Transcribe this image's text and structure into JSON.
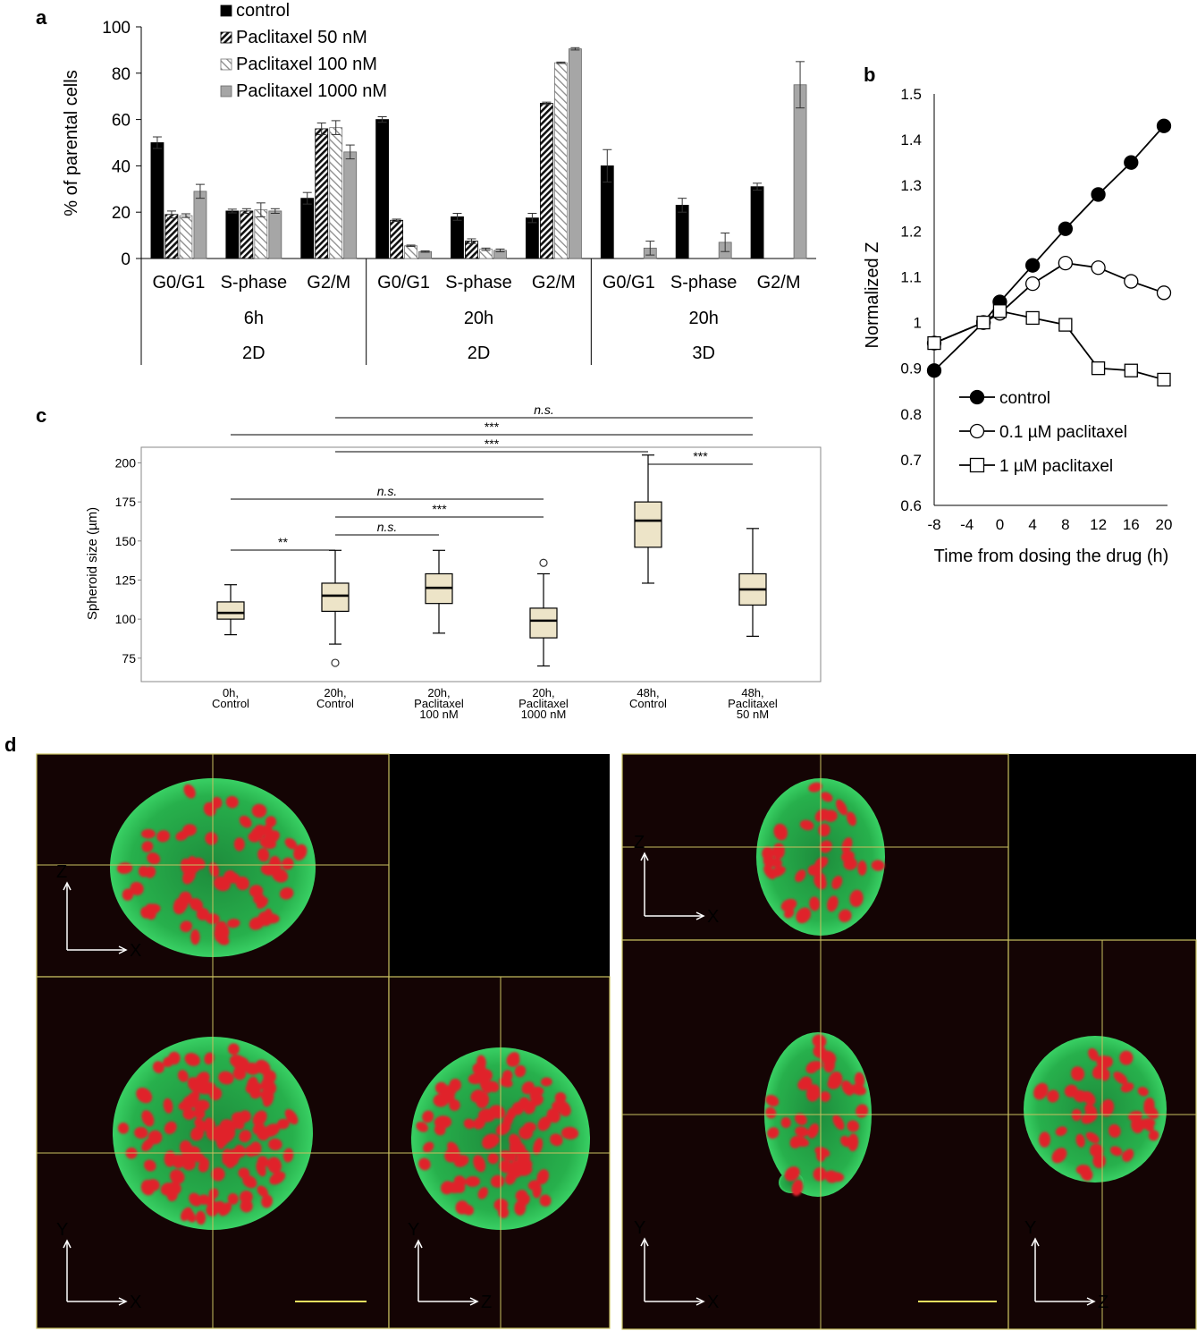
{
  "panel_labels": {
    "a": "a",
    "b": "b",
    "c": "c",
    "d": "d"
  },
  "chart_data": [
    {
      "id": "a",
      "type": "bar",
      "ylabel": "% of parental cells",
      "ylim": [
        0,
        100
      ],
      "yticks": [
        0,
        20,
        40,
        60,
        80,
        100
      ],
      "legend": [
        "control",
        "Paclitaxel 50 nM",
        "Paclitaxel 100 nM",
        "Paclitaxel 1000 nM"
      ],
      "groups": [
        {
          "time": "6h",
          "culture": "2D",
          "categories": [
            {
              "label": "G0/G1",
              "values": [
                50,
                19,
                18.5,
                29
              ],
              "errors": [
                2.5,
                1.5,
                0.8,
                3
              ]
            },
            {
              "label": "S-phase",
              "values": [
                20.5,
                20.5,
                21,
                20.5
              ],
              "errors": [
                0.8,
                1,
                3,
                1
              ]
            },
            {
              "label": "G2/M",
              "values": [
                26,
                56,
                56.5,
                46
              ],
              "errors": [
                2.5,
                2.5,
                3,
                3
              ]
            }
          ]
        },
        {
          "time": "20h",
          "culture": "2D",
          "categories": [
            {
              "label": "G0/G1",
              "values": [
                60,
                16.5,
                5.5,
                3
              ],
              "errors": [
                1.2,
                0.5,
                0.3,
                0.3
              ]
            },
            {
              "label": "S-phase",
              "values": [
                18,
                7.5,
                4,
                3.5
              ],
              "errors": [
                1.5,
                1,
                0.5,
                0.6
              ]
            },
            {
              "label": "G2/M",
              "values": [
                17.5,
                67,
                84.5,
                90.5
              ],
              "errors": [
                2,
                0.5,
                0.3,
                0.5
              ]
            }
          ]
        },
        {
          "time": "20h",
          "culture": "3D",
          "categories": [
            {
              "label": "G0/G1",
              "values": [
                40,
                null,
                null,
                4.5
              ],
              "errors": [
                7,
                0,
                0,
                3
              ]
            },
            {
              "label": "S-phase",
              "values": [
                23,
                null,
                null,
                7
              ],
              "errors": [
                3,
                0,
                0,
                4
              ]
            },
            {
              "label": "G2/M",
              "values": [
                31,
                null,
                null,
                75
              ],
              "errors": [
                1.5,
                0,
                0,
                10
              ]
            }
          ]
        }
      ]
    },
    {
      "id": "b",
      "type": "line",
      "xlabel": "Time from dosing the drug (h)",
      "ylabel": "Normalized Z",
      "xlim": [
        -8,
        20
      ],
      "ylim": [
        0.6,
        1.5
      ],
      "xticks": [
        -8,
        -4,
        0,
        4,
        8,
        12,
        16,
        20
      ],
      "yticks": [
        0.6,
        0.7,
        0.8,
        0.9,
        1,
        1.1,
        1.2,
        1.3,
        1.4,
        1.5
      ],
      "series": [
        {
          "name": "control",
          "marker": "filled-circle",
          "x": [
            -8,
            -2,
            0,
            4,
            8,
            12,
            16,
            20
          ],
          "y": [
            0.895,
            1.0,
            1.045,
            1.125,
            1.205,
            1.28,
            1.35,
            1.43
          ]
        },
        {
          "name": "0.1 µM paclitaxel",
          "marker": "open-circle",
          "x": [
            -8,
            -2,
            0,
            4,
            8,
            12,
            16,
            20
          ],
          "y": [
            0.955,
            1.0,
            1.02,
            1.085,
            1.13,
            1.12,
            1.09,
            1.065
          ]
        },
        {
          "name": "1 µM paclitaxel",
          "marker": "open-square",
          "x": [
            -8,
            -2,
            0,
            4,
            8,
            12,
            16,
            20
          ],
          "y": [
            0.955,
            1.0,
            1.025,
            1.01,
            0.995,
            0.9,
            0.895,
            0.875
          ]
        }
      ]
    },
    {
      "id": "c",
      "type": "box",
      "ylabel": "Spheroid size (µm)",
      "ylim": [
        60,
        210
      ],
      "yticks": [
        75,
        100,
        125,
        150,
        175,
        200
      ],
      "boxes": [
        {
          "label": [
            "0h,",
            "Control"
          ],
          "whisker_low": 90,
          "q1": 100,
          "median": 104,
          "q3": 111,
          "whisker_high": 122,
          "outliers": []
        },
        {
          "label": [
            "20h,",
            "Control"
          ],
          "whisker_low": 84,
          "q1": 105,
          "median": 115,
          "q3": 123,
          "whisker_high": 144,
          "outliers": [
            72
          ]
        },
        {
          "label": [
            "20h,",
            "Paclitaxel",
            "100 nM"
          ],
          "whisker_low": 91,
          "q1": 110,
          "median": 120,
          "q3": 129,
          "whisker_high": 144,
          "outliers": []
        },
        {
          "label": [
            "20h,",
            "Paclitaxel",
            "1000 nM"
          ],
          "whisker_low": 70,
          "q1": 88,
          "median": 99,
          "q3": 107,
          "whisker_high": 129,
          "outliers": [
            136
          ]
        },
        {
          "label": [
            "48h,",
            "Control"
          ],
          "whisker_low": 123,
          "q1": 146,
          "median": 163,
          "q3": 175,
          "whisker_high": 205,
          "outliers": []
        },
        {
          "label": [
            "48h,",
            "Paclitaxel",
            "50 nM"
          ],
          "whisker_low": 89,
          "q1": 109,
          "median": 119,
          "q3": 129,
          "whisker_high": 158,
          "outliers": []
        }
      ],
      "significance": [
        {
          "from": 1,
          "to": 5,
          "label": "n.s.",
          "italic": true
        },
        {
          "from": 0,
          "to": 5,
          "label": "***",
          "italic": false
        },
        {
          "from": 1,
          "to": 4,
          "label": "***",
          "italic": false
        },
        {
          "from": 4,
          "to": 5,
          "label": "***",
          "italic": false
        },
        {
          "from": 0,
          "to": 3,
          "label": "n.s.",
          "italic": true
        },
        {
          "from": 1,
          "to": 3,
          "label": "***",
          "italic": false
        },
        {
          "from": 1,
          "to": 2,
          "label": "n.s.",
          "italic": true
        },
        {
          "from": 0,
          "to": 1,
          "label": "**",
          "italic": false
        }
      ]
    }
  ],
  "micrographs": {
    "left": {
      "top_axes": [
        "Z",
        "X"
      ],
      "main_axes": [
        "Y",
        "X"
      ],
      "side_axes": [
        "Y",
        "Z"
      ]
    },
    "right": {
      "top_axes": [
        "Z",
        "X"
      ],
      "main_axes": [
        "Y",
        "X"
      ],
      "side_axes": [
        "Y",
        "Z"
      ]
    }
  },
  "colors": {
    "nuclei": "#e0202c",
    "membrane": "#2ec55a",
    "crosshair": "#c8c060",
    "background": "#140404"
  }
}
